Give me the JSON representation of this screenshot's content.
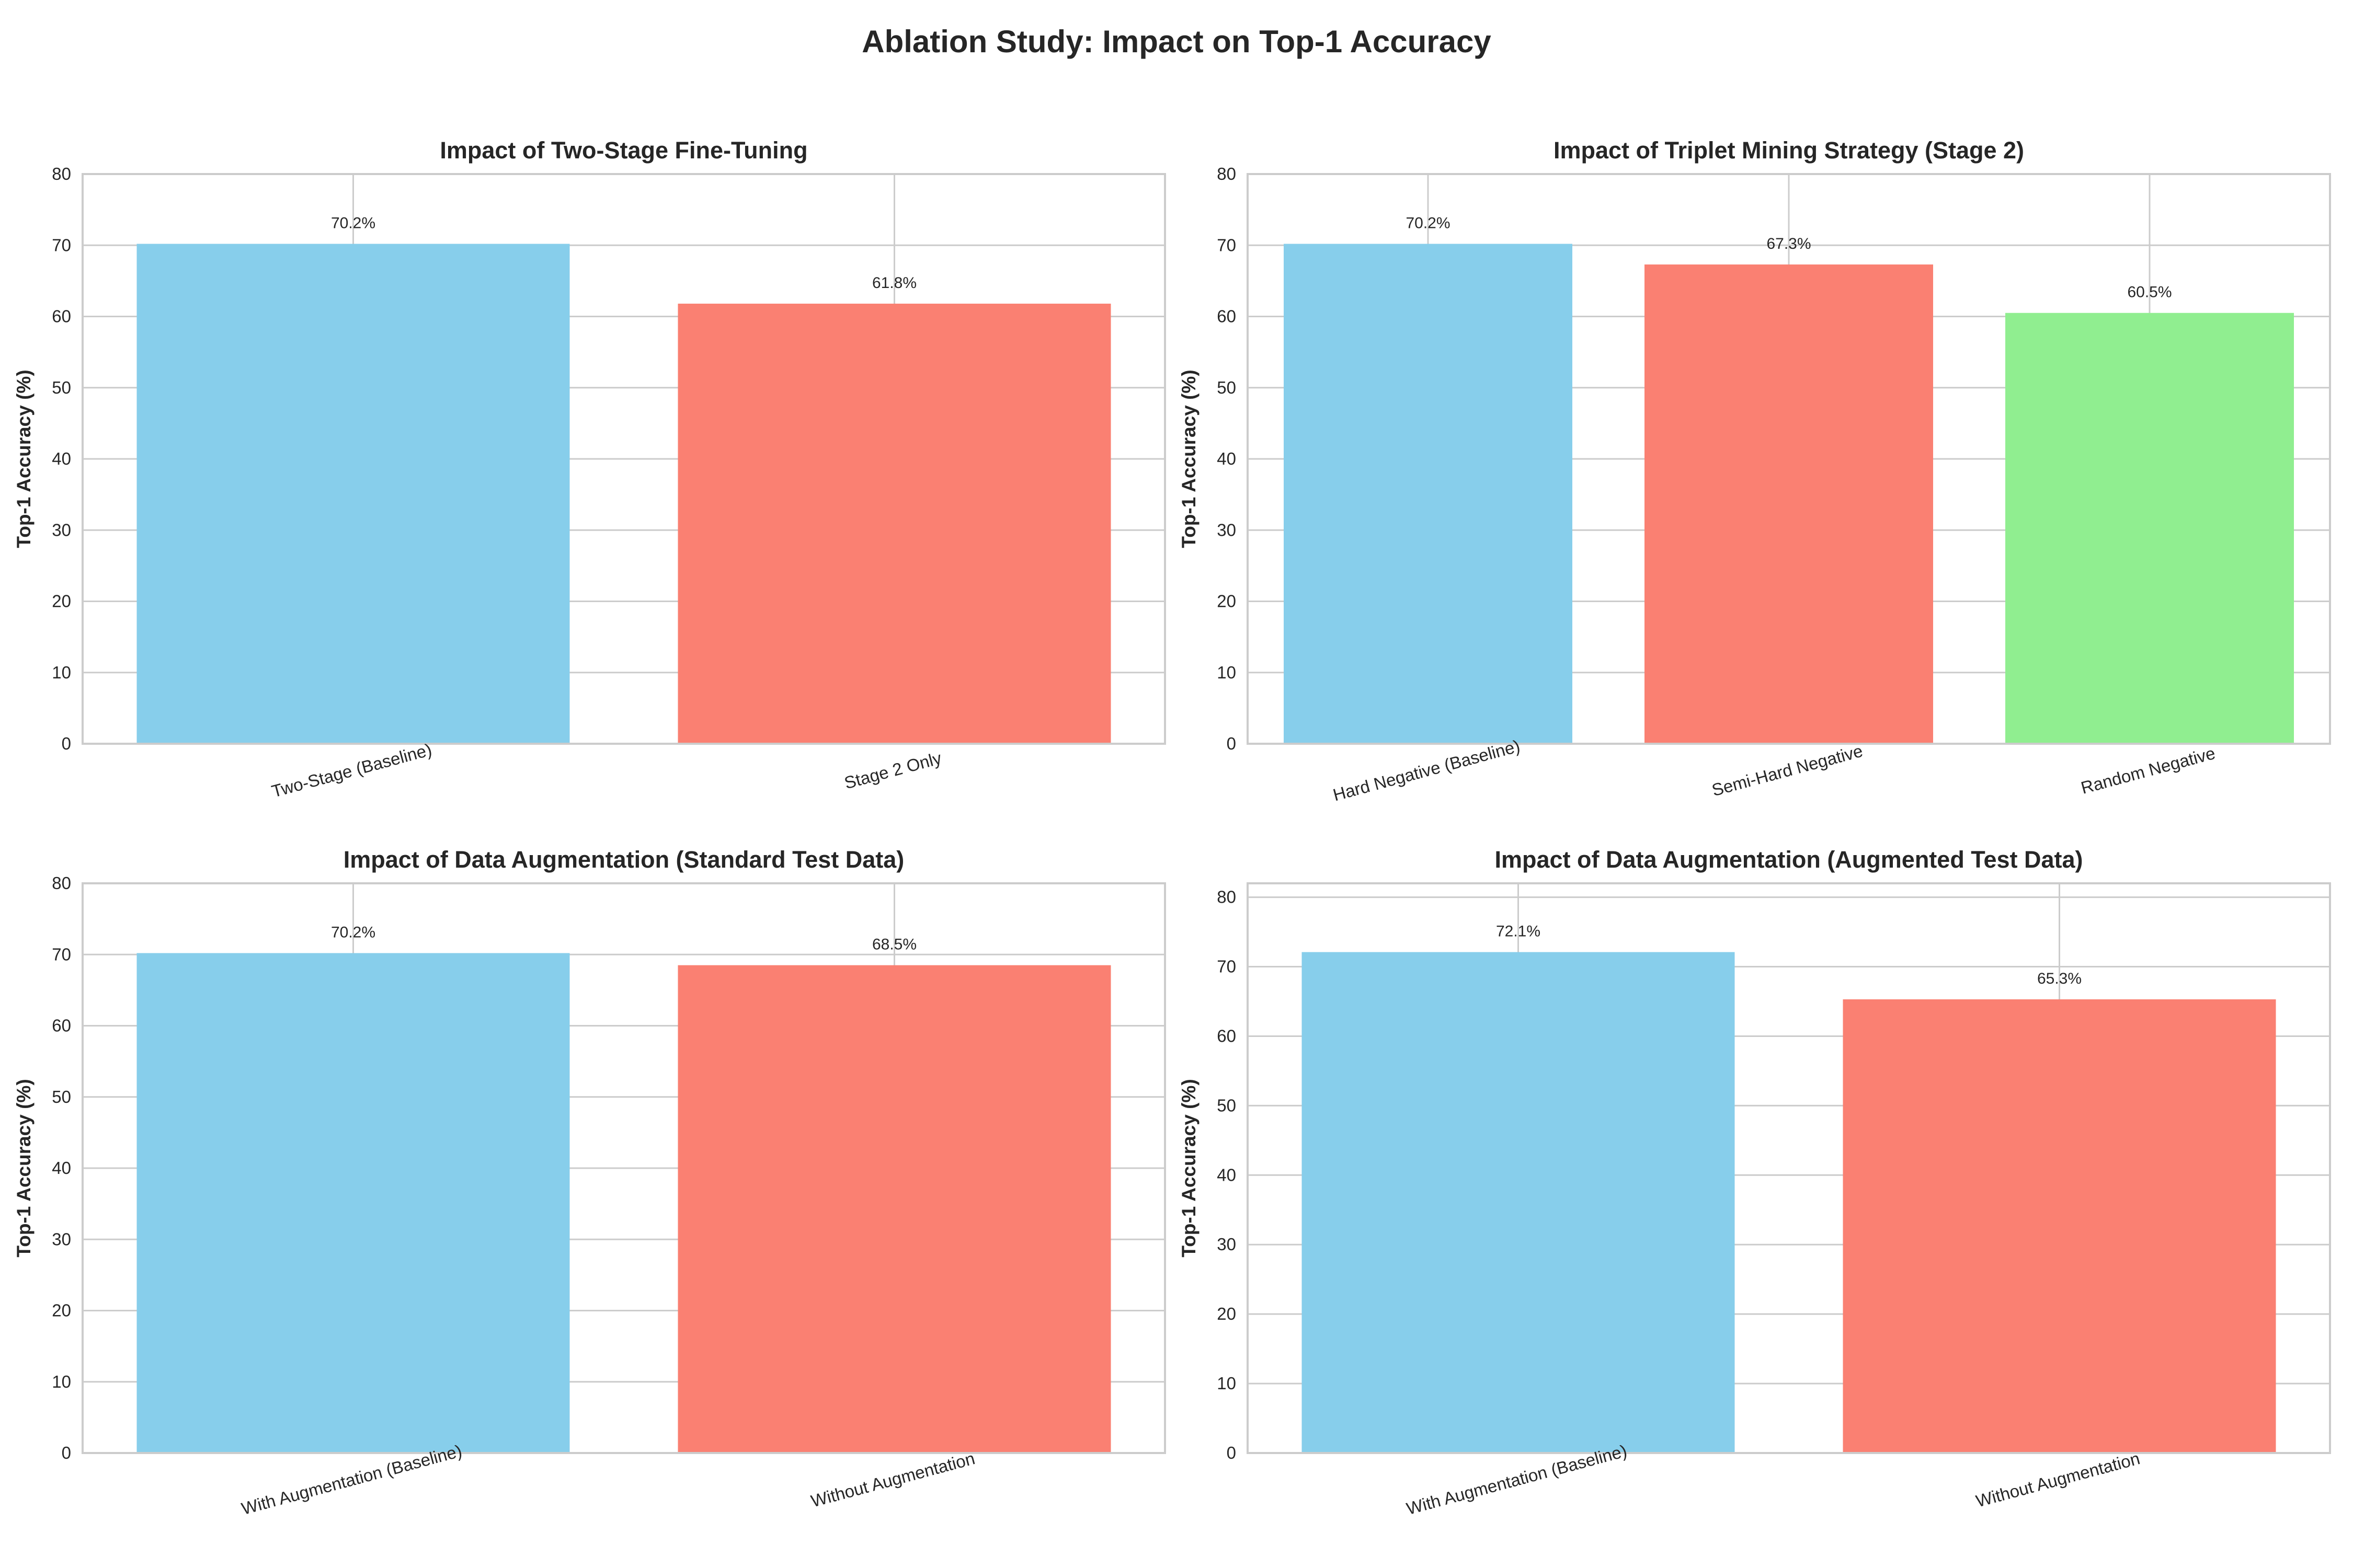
{
  "figure": {
    "title": "Ablation Study: Impact on Top-1 Accuracy"
  },
  "chart_data": [
    {
      "type": "bar",
      "title": "Impact of Two-Stage Fine-Tuning",
      "xlabel": "",
      "ylabel": "Top-1 Accuracy (%)",
      "ylim": [
        0,
        80
      ],
      "yticks": [
        0,
        10,
        20,
        30,
        40,
        50,
        60,
        70,
        80
      ],
      "grid": true,
      "categories": [
        "Two-Stage (Baseline)",
        "Stage 2 Only"
      ],
      "values": [
        70.2,
        61.8
      ],
      "labels": [
        "70.2%",
        "61.8%"
      ],
      "colors": [
        "#87CEEB",
        "#FA8072"
      ]
    },
    {
      "type": "bar",
      "title": "Impact of Triplet Mining Strategy (Stage 2)",
      "xlabel": "",
      "ylabel": "Top-1 Accuracy (%)",
      "ylim": [
        0,
        80
      ],
      "yticks": [
        0,
        10,
        20,
        30,
        40,
        50,
        60,
        70,
        80
      ],
      "grid": true,
      "categories": [
        "Hard Negative (Baseline)",
        "Semi-Hard Negative",
        "Random Negative"
      ],
      "values": [
        70.2,
        67.3,
        60.5
      ],
      "labels": [
        "70.2%",
        "67.3%",
        "60.5%"
      ],
      "colors": [
        "#87CEEB",
        "#FA8072",
        "#90EE90"
      ]
    },
    {
      "type": "bar",
      "title": "Impact of Data Augmentation (Standard Test Data)",
      "xlabel": "",
      "ylabel": "Top-1 Accuracy (%)",
      "ylim": [
        0,
        80
      ],
      "yticks": [
        0,
        10,
        20,
        30,
        40,
        50,
        60,
        70,
        80
      ],
      "grid": true,
      "categories": [
        "With Augmentation (Baseline)",
        "Without Augmentation"
      ],
      "values": [
        70.2,
        68.5
      ],
      "labels": [
        "70.2%",
        "68.5%"
      ],
      "colors": [
        "#87CEEB",
        "#FA8072"
      ]
    },
    {
      "type": "bar",
      "title": "Impact of Data Augmentation (Augmented Test Data)",
      "xlabel": "",
      "ylabel": "Top-1 Accuracy (%)",
      "ylim": [
        0,
        82
      ],
      "yticks": [
        0,
        10,
        20,
        30,
        40,
        50,
        60,
        70,
        80
      ],
      "grid": true,
      "categories": [
        "With Augmentation (Baseline)",
        "Without Augmentation"
      ],
      "values": [
        72.1,
        65.3
      ],
      "labels": [
        "72.1%",
        "65.3%"
      ],
      "colors": [
        "#87CEEB",
        "#FA8072"
      ]
    }
  ]
}
